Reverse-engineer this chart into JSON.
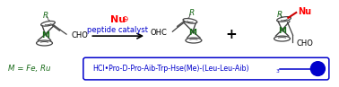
{
  "bg_color": "#ffffff",
  "nu_color": "#ff0000",
  "peptide_color": "#0000cc",
  "metal_color": "#1a6b1a",
  "struct_color": "#444444",
  "r_color": "#1a6b1a",
  "m_color": "#1a6b1a",
  "cho_color": "#000000",
  "box_color": "#0000cc",
  "peptide_text": "HCl•Pro-D-Pro-Aib-Trp-Hse(Me)-(Leu-Leu-Aib)",
  "peptide_sub": "3",
  "nu_text": "Nu",
  "nu_charge": "⊖",
  "peptide_label": "peptide catalyst",
  "m_label": "M = Fe, Ru",
  "plus_sign": "+",
  "fig_width": 3.78,
  "fig_height": 0.97,
  "dpi": 100
}
